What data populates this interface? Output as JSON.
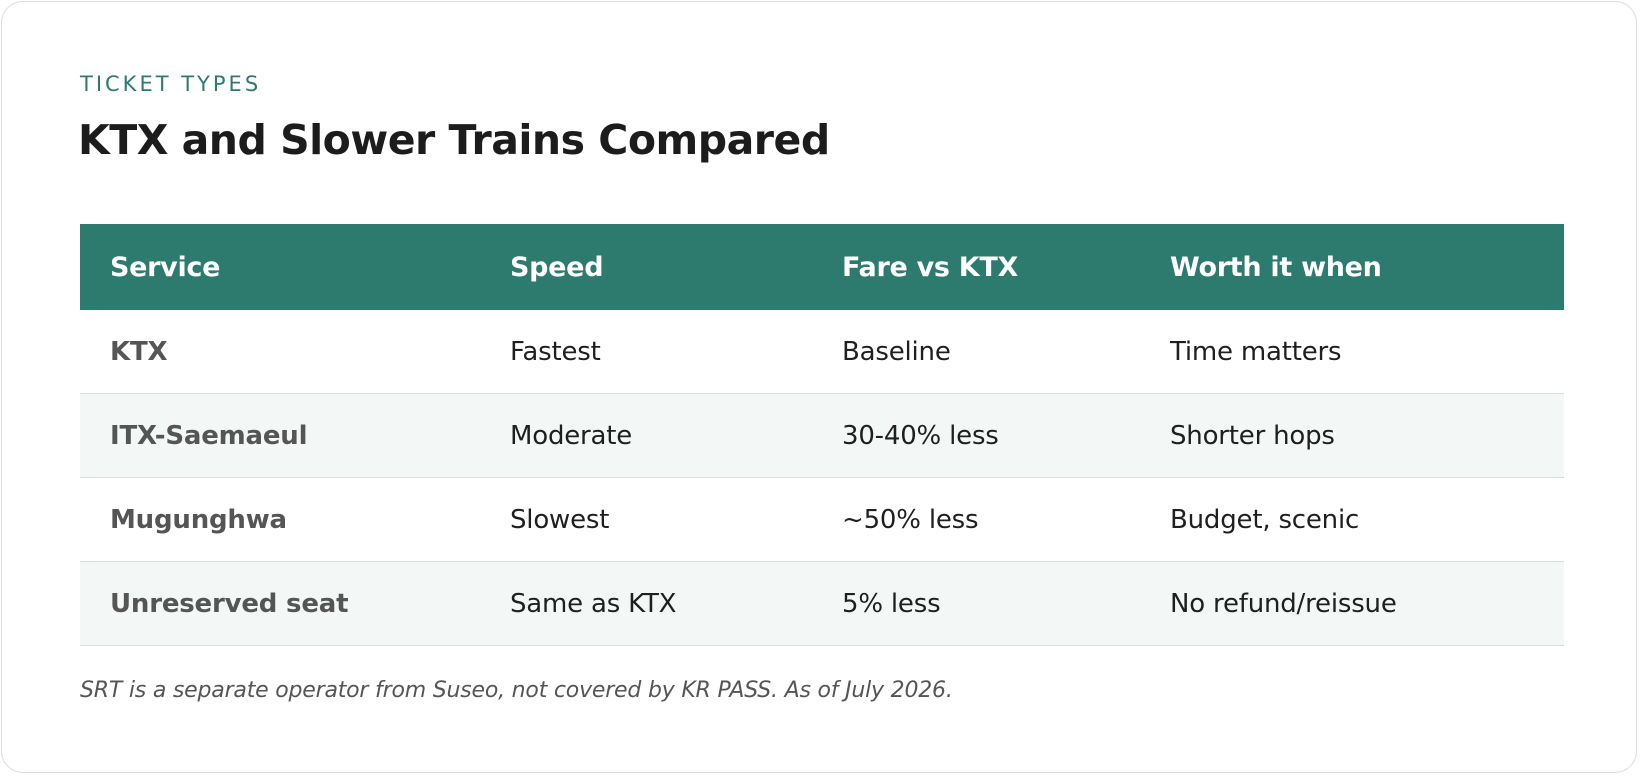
{
  "header": {
    "eyebrow": "TICKET TYPES",
    "title": "KTX and Slower Trains Compared"
  },
  "table": {
    "columns": [
      "Service",
      "Speed",
      "Fare vs KTX",
      "Worth it when"
    ],
    "rows": [
      [
        "KTX",
        "Fastest",
        "Baseline",
        "Time matters"
      ],
      [
        "ITX-Saemaeul",
        "Moderate",
        "30-40% less",
        "Shorter hops"
      ],
      [
        "Mugunghwa",
        "Slowest",
        "~50% less",
        "Budget, scenic"
      ],
      [
        "Unreserved seat",
        "Same as KTX",
        "5% less",
        "No refund/reissue"
      ]
    ]
  },
  "footnote": "SRT is a separate operator from Suseo, not covered by KR PASS. As of July 2026.",
  "colors": {
    "accent": "#2d7a6e",
    "eyebrow": "#2f7a70",
    "alt_row": "#f3f7f6",
    "border": "#dcdcdc"
  }
}
